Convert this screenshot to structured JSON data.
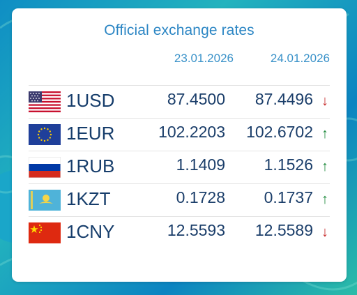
{
  "title": "Official exchange rates",
  "dates": [
    "23.01.2026",
    "24.01.2026"
  ],
  "rates": [
    {
      "code": "1USD",
      "flag": "us-flag-icon",
      "rate1": "87.4500",
      "rate2": "87.4496",
      "trend": "down",
      "arrow": "↓"
    },
    {
      "code": "1EUR",
      "flag": "eu-flag-icon",
      "rate1": "102.2203",
      "rate2": "102.6702",
      "trend": "up",
      "arrow": "↑"
    },
    {
      "code": "1RUB",
      "flag": "ru-flag-icon",
      "rate1": "1.1409",
      "rate2": "1.1526",
      "trend": "up",
      "arrow": "↑"
    },
    {
      "code": "1KZT",
      "flag": "kz-flag-icon",
      "rate1": "0.1728",
      "rate2": "0.1737",
      "trend": "up",
      "arrow": "↑"
    },
    {
      "code": "1CNY",
      "flag": "cn-flag-icon",
      "rate1": "12.5593",
      "rate2": "12.5589",
      "trend": "down",
      "arrow": "↓"
    }
  ],
  "colors": {
    "accent": "#2c86c4",
    "text": "#163d6b",
    "down": "#c62828",
    "up": "#1e8a3c"
  }
}
